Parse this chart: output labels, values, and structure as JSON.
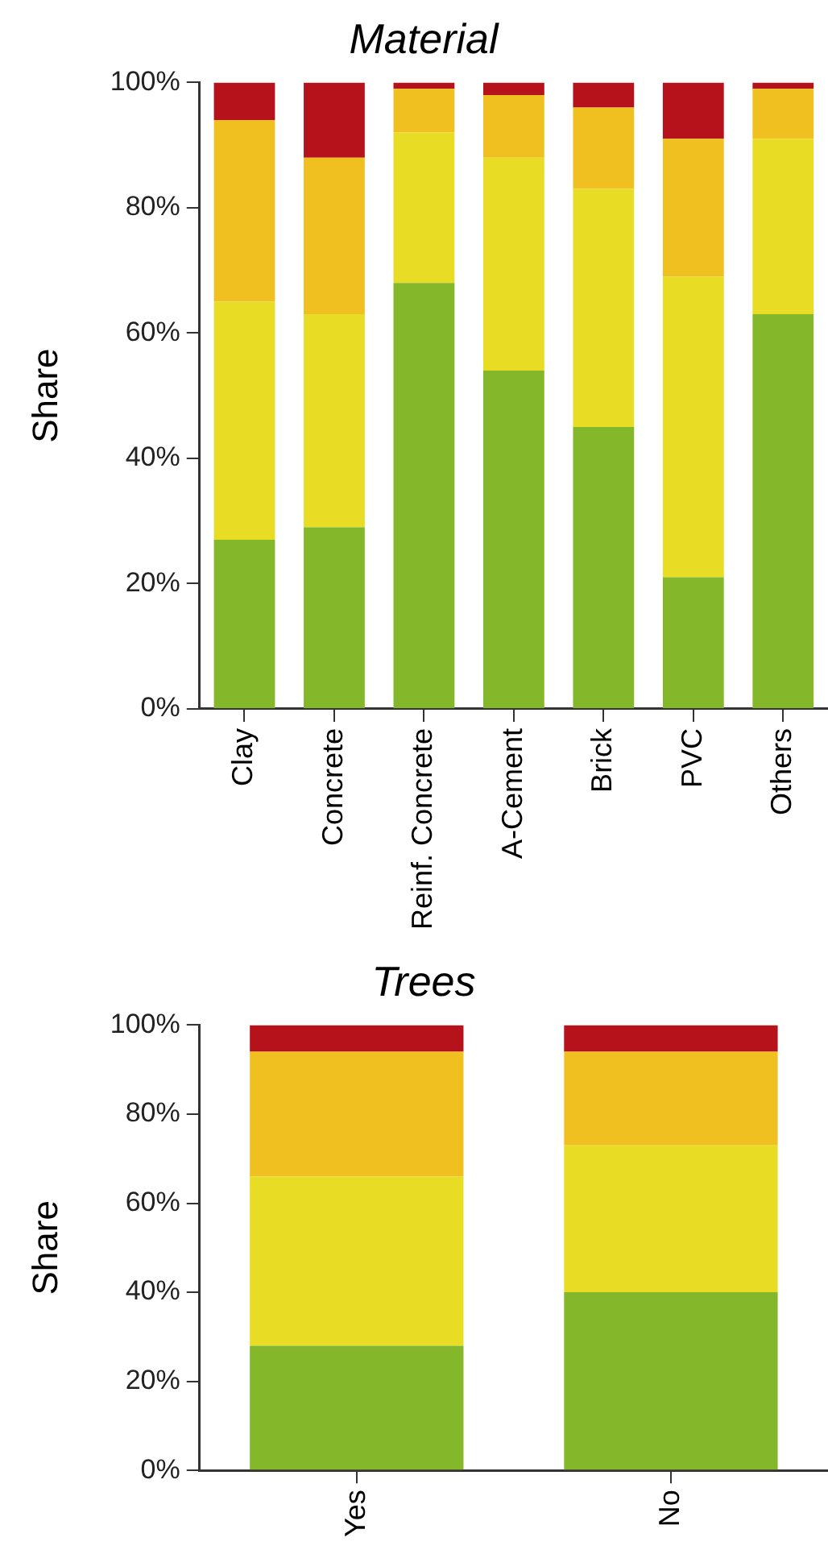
{
  "chart_data": [
    {
      "type": "bar",
      "title": "Material",
      "ylabel": "Share",
      "stacked": true,
      "grid": false,
      "legend": false,
      "categories": [
        "Clay",
        "Concrete",
        "Reinf. Concrete",
        "A-Cement",
        "Brick",
        "PVC",
        "Others"
      ],
      "series": [
        {
          "color": "#84b82a",
          "values": [
            27,
            29,
            68,
            54,
            45,
            21,
            63
          ]
        },
        {
          "color": "#e8dc24",
          "values": [
            38,
            34,
            24,
            34,
            38,
            48,
            28
          ]
        },
        {
          "color": "#f0c020",
          "values": [
            29,
            25,
            7,
            10,
            13,
            22,
            8
          ]
        },
        {
          "color": "#b5121b",
          "values": [
            6,
            12,
            1,
            2,
            4,
            9,
            1
          ]
        }
      ],
      "ylim": [
        0,
        100
      ],
      "yticks": [
        {
          "value": 0,
          "label": "0%"
        },
        {
          "value": 20,
          "label": "20%"
        },
        {
          "value": 40,
          "label": "40%"
        },
        {
          "value": 60,
          "label": "60%"
        },
        {
          "value": 80,
          "label": "80%"
        },
        {
          "value": 100,
          "label": "100%"
        }
      ]
    },
    {
      "type": "bar",
      "title": "Trees",
      "ylabel": "Share",
      "stacked": true,
      "grid": false,
      "legend": false,
      "categories": [
        "Yes",
        "No"
      ],
      "series": [
        {
          "color": "#84b82a",
          "values": [
            28,
            40
          ]
        },
        {
          "color": "#e8dc24",
          "values": [
            38,
            33
          ]
        },
        {
          "color": "#f0c020",
          "values": [
            28,
            21
          ]
        },
        {
          "color": "#b5121b",
          "values": [
            6,
            6
          ]
        }
      ],
      "ylim": [
        0,
        100
      ],
      "yticks": [
        {
          "value": 0,
          "label": "0%"
        },
        {
          "value": 20,
          "label": "20%"
        },
        {
          "value": 40,
          "label": "40%"
        },
        {
          "value": 60,
          "label": "60%"
        },
        {
          "value": 80,
          "label": "80%"
        },
        {
          "value": 100,
          "label": "100%"
        }
      ]
    }
  ]
}
